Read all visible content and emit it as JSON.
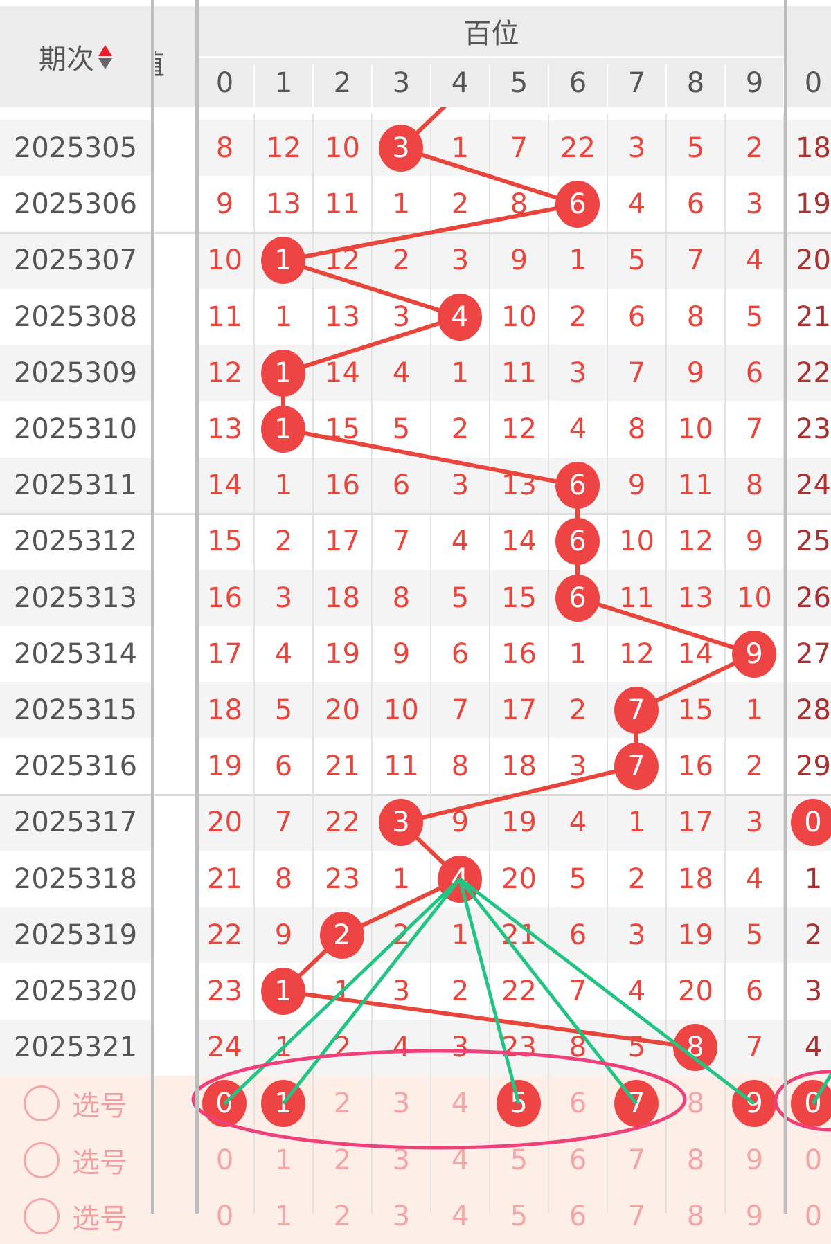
{
  "header": {
    "period_label": "期次",
    "narrow_column_label": "值",
    "group_label": "百位",
    "digits": [
      "0",
      "1",
      "2",
      "3",
      "4",
      "5",
      "6",
      "7",
      "8",
      "9"
    ],
    "next_group_first_digit": "0"
  },
  "rows": [
    {
      "period": "2025305",
      "values": [
        8,
        12,
        10,
        3,
        1,
        7,
        22,
        3,
        5,
        2
      ],
      "hit": 3,
      "next": "18",
      "next_hit": false
    },
    {
      "period": "2025306",
      "values": [
        9,
        13,
        11,
        1,
        2,
        8,
        6,
        4,
        6,
        3
      ],
      "hit": 6,
      "next": "19",
      "next_hit": false
    },
    {
      "period": "2025307",
      "values": [
        10,
        1,
        12,
        2,
        3,
        9,
        1,
        5,
        7,
        4
      ],
      "hit": 1,
      "next": "20",
      "next_hit": false
    },
    {
      "period": "2025308",
      "values": [
        11,
        1,
        13,
        3,
        4,
        10,
        2,
        6,
        8,
        5
      ],
      "hit": 4,
      "next": "21",
      "next_hit": false
    },
    {
      "period": "2025309",
      "values": [
        12,
        1,
        14,
        4,
        1,
        11,
        3,
        7,
        9,
        6
      ],
      "hit": 1,
      "next": "22",
      "next_hit": false
    },
    {
      "period": "2025310",
      "values": [
        13,
        1,
        15,
        5,
        2,
        12,
        4,
        8,
        10,
        7
      ],
      "hit": 1,
      "next": "23",
      "next_hit": false
    },
    {
      "period": "2025311",
      "values": [
        14,
        1,
        16,
        6,
        3,
        13,
        6,
        9,
        11,
        8
      ],
      "hit": 6,
      "next": "24",
      "next_hit": false
    },
    {
      "period": "2025312",
      "values": [
        15,
        2,
        17,
        7,
        4,
        14,
        6,
        10,
        12,
        9
      ],
      "hit": 6,
      "next": "25",
      "next_hit": false
    },
    {
      "period": "2025313",
      "values": [
        16,
        3,
        18,
        8,
        5,
        15,
        6,
        11,
        13,
        10
      ],
      "hit": 6,
      "next": "26",
      "next_hit": false
    },
    {
      "period": "2025314",
      "values": [
        17,
        4,
        19,
        9,
        6,
        16,
        1,
        12,
        14,
        9
      ],
      "hit": 9,
      "next": "27",
      "next_hit": false
    },
    {
      "period": "2025315",
      "values": [
        18,
        5,
        20,
        10,
        7,
        17,
        2,
        7,
        15,
        1
      ],
      "hit": 7,
      "next": "28",
      "next_hit": false
    },
    {
      "period": "2025316",
      "values": [
        19,
        6,
        21,
        11,
        8,
        18,
        3,
        7,
        16,
        2
      ],
      "hit": 7,
      "next": "29",
      "next_hit": false
    },
    {
      "period": "2025317",
      "values": [
        20,
        7,
        22,
        3,
        9,
        19,
        4,
        1,
        17,
        3
      ],
      "hit": 3,
      "next": "0",
      "next_hit": true
    },
    {
      "period": "2025318",
      "values": [
        21,
        8,
        23,
        1,
        4,
        20,
        5,
        2,
        18,
        4
      ],
      "hit": 4,
      "next": "1",
      "next_hit": false
    },
    {
      "period": "2025319",
      "values": [
        22,
        9,
        2,
        2,
        1,
        21,
        6,
        3,
        19,
        5
      ],
      "hit": 2,
      "next": "2",
      "next_hit": false
    },
    {
      "period": "2025320",
      "values": [
        23,
        1,
        1,
        3,
        2,
        22,
        7,
        4,
        20,
        6
      ],
      "hit": 1,
      "next": "3",
      "next_hit": false
    },
    {
      "period": "2025321",
      "values": [
        24,
        1,
        2,
        4,
        3,
        23,
        8,
        5,
        8,
        7
      ],
      "hit": 8,
      "next": "4",
      "next_hit": false
    }
  ],
  "previous_hit_column": 4,
  "select_rows": [
    {
      "label": "选号",
      "selected": [
        0,
        1,
        5,
        7,
        9
      ],
      "next_selected": true
    },
    {
      "label": "选号",
      "selected": [],
      "next_selected": false
    },
    {
      "label": "选号",
      "selected": [],
      "next_selected": false
    }
  ],
  "colors": {
    "hit": "#ef4444",
    "miss_text": "#e8453c",
    "trend_line": "#e8453c",
    "pick_line": "#22c483",
    "pick_ellipse": "#f0407a",
    "select_bg": "#fdeee8",
    "header_bg": "#ececec"
  }
}
